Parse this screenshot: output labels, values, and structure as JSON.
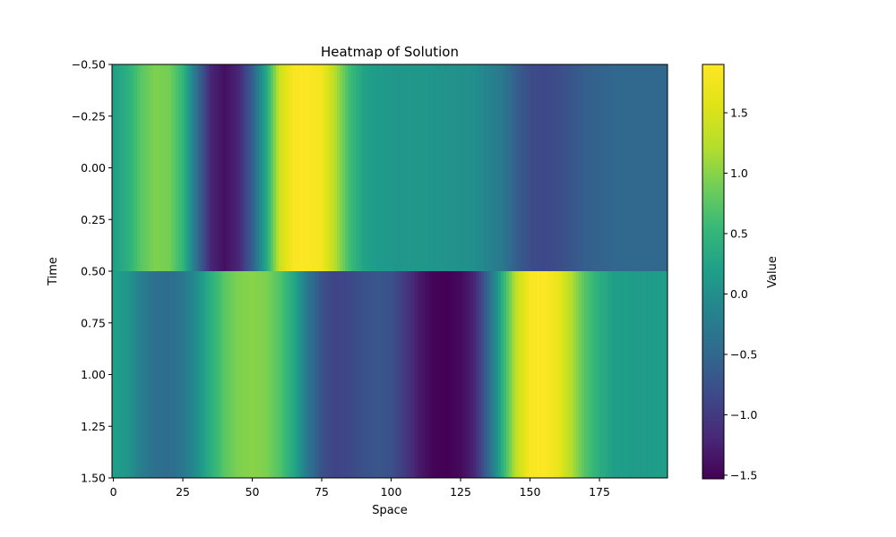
{
  "chart_data": {
    "type": "heatmap",
    "title": "Heatmap of Solution",
    "xlabel": "Space",
    "ylabel": "Time",
    "colorbar_label": "Value",
    "colormap": "viridis",
    "grid": false,
    "xlim": [
      -0.5,
      199.5
    ],
    "ylim": [
      1.5,
      -0.5
    ],
    "x_ticks": [
      0,
      25,
      50,
      75,
      100,
      125,
      150,
      175
    ],
    "x_tick_labels": [
      "0",
      "25",
      "50",
      "75",
      "100",
      "125",
      "150",
      "175"
    ],
    "y_ticks": [
      -0.5,
      -0.25,
      0.0,
      0.25,
      0.5,
      0.75,
      1.0,
      1.25,
      1.5
    ],
    "y_tick_labels": [
      "−0.50",
      "−0.25",
      "0.00",
      "0.25",
      "0.50",
      "0.75",
      "1.00",
      "1.25",
      "1.50"
    ],
    "color_range": [
      -1.53,
      1.9
    ],
    "colorbar_ticks": [
      -1.5,
      -1.0,
      -0.5,
      0.0,
      0.5,
      1.0,
      1.5
    ],
    "colorbar_tick_labels": [
      "−1.5",
      "−1.0",
      "−0.5",
      "0.0",
      "0.5",
      "1.0",
      "1.5"
    ],
    "rows": [
      {
        "time": 0,
        "profile_x": [
          0,
          5,
          10,
          15,
          20,
          25,
          30,
          35,
          40,
          45,
          50,
          55,
          60,
          65,
          70,
          75,
          80,
          85,
          90,
          95,
          100,
          110,
          120,
          130,
          140,
          145,
          150,
          155,
          160,
          170,
          180,
          199
        ],
        "profile_values": [
          0.2,
          0.4,
          0.75,
          0.95,
          0.9,
          0.5,
          -0.4,
          -1.2,
          -1.4,
          -1.2,
          -0.6,
          0.3,
          1.4,
          1.85,
          1.9,
          1.75,
          1.2,
          0.6,
          0.25,
          0.15,
          0.1,
          0.1,
          0.05,
          0.0,
          -0.3,
          -0.6,
          -0.8,
          -0.85,
          -0.8,
          -0.6,
          -0.5,
          -0.5
        ]
      },
      {
        "time": 1,
        "profile_x": [
          0,
          5,
          10,
          15,
          20,
          25,
          30,
          35,
          40,
          45,
          50,
          55,
          60,
          65,
          70,
          75,
          80,
          85,
          90,
          95,
          100,
          105,
          110,
          115,
          120,
          125,
          130,
          135,
          140,
          145,
          150,
          155,
          160,
          165,
          170,
          175,
          180,
          190,
          199
        ],
        "profile_values": [
          0.2,
          0.1,
          -0.2,
          -0.4,
          -0.45,
          -0.3,
          0.0,
          0.4,
          0.75,
          0.95,
          1.0,
          0.95,
          0.7,
          0.3,
          -0.3,
          -0.75,
          -0.9,
          -0.85,
          -0.75,
          -0.7,
          -0.75,
          -1.0,
          -1.3,
          -1.5,
          -1.53,
          -1.45,
          -1.2,
          -0.5,
          0.4,
          1.3,
          1.85,
          1.9,
          1.7,
          1.2,
          0.7,
          0.4,
          0.2,
          0.15,
          0.2
        ]
      }
    ]
  }
}
